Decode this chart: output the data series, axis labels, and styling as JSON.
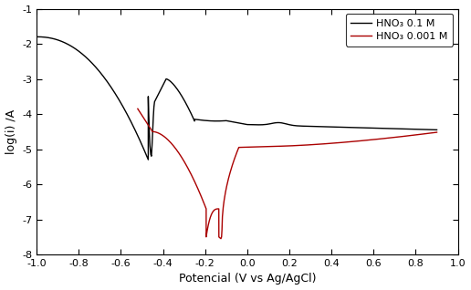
{
  "title": "",
  "xlabel": "Potencial (V vs Ag/AgCl)",
  "ylabel": "log(i) /A",
  "xlim": [
    -1.0,
    1.0
  ],
  "ylim": [
    -8,
    -1
  ],
  "xticks": [
    -1.0,
    -0.8,
    -0.6,
    -0.4,
    -0.2,
    0.0,
    0.2,
    0.4,
    0.6,
    0.8,
    1.0
  ],
  "yticks": [
    -8,
    -7,
    -6,
    -5,
    -4,
    -3,
    -2,
    -1
  ],
  "line1_color": "#000000",
  "line2_color": "#aa0000",
  "legend_labels": [
    "HNO₃ 0.1 M",
    "HNO₃ 0.001 M"
  ],
  "legend_loc": "upper right"
}
